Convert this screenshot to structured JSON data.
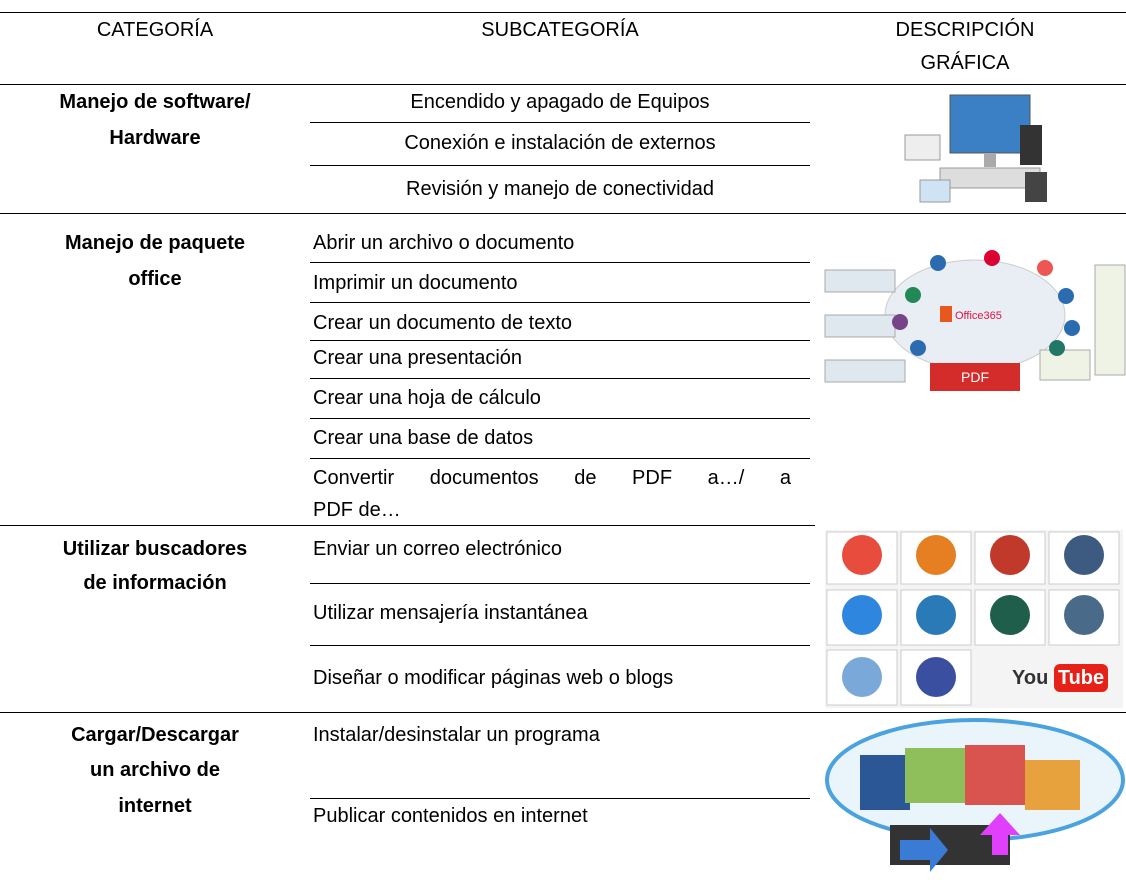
{
  "table": {
    "headers": [
      "CATEGORÍA",
      "SUBCATEGORÍA",
      [
        "DESCRIPCIÓN",
        "GRÁFICA"
      ]
    ],
    "rows": [
      {
        "category": [
          "Manejo de software/",
          "Hardware"
        ],
        "subcategories": [
          "Encendido y apagado de Equipos",
          "Conexión e instalación de externos",
          "Revisión y manejo de conectividad"
        ]
      },
      {
        "category": [
          "Manejo de paquete",
          "office"
        ],
        "subcategories": [
          "Abrir un archivo o documento",
          "Imprimir un documento",
          "Crear un documento de texto",
          "Crear una presentación",
          "Crear una hoja de cálculo",
          "Crear una base de datos",
          [
            "Convertir documentos de PDF a…/ a",
            "PDF de…"
          ]
        ]
      },
      {
        "category": [
          "Utilizar buscadores",
          "de información"
        ],
        "subcategories": [
          "Enviar un correo electrónico",
          "Utilizar mensajería instantánea",
          "Diseñar o modificar páginas web o blogs"
        ]
      },
      {
        "category": [
          "Cargar/Descargar",
          "un archivo de",
          "internet"
        ],
        "subcategories": [
          "Instalar/desinstalar un programa",
          "Publicar contenidos en internet"
        ]
      }
    ]
  },
  "images": {
    "office_label": "Office365",
    "office_pdf": "PDF",
    "youtube": [
      "You",
      "Tube"
    ]
  }
}
